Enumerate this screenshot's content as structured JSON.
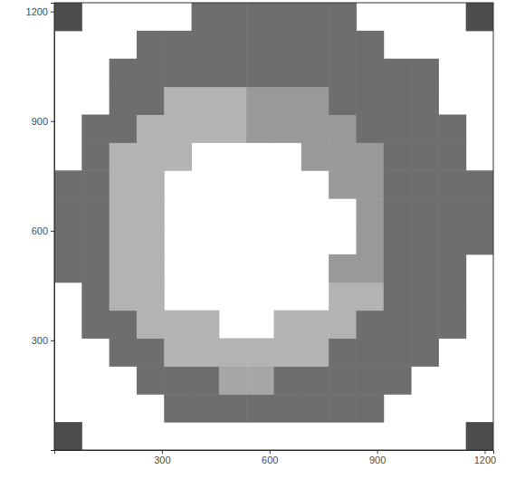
{
  "chart_data": {
    "type": "heatmap",
    "x_bins": [
      0,
      76.5,
      153,
      229.5,
      306,
      382.5,
      459,
      535.5,
      612,
      688.5,
      765,
      841.5,
      918,
      994.5,
      1071,
      1147.5,
      1224
    ],
    "y_bins": [
      0,
      76.5,
      153,
      229.5,
      306,
      382.5,
      459,
      535.5,
      612,
      688.5,
      765,
      841.5,
      918,
      994.5,
      1071,
      1147.5,
      1224
    ],
    "cells": [
      [
        0.3,
        null,
        null,
        null,
        null,
        null,
        null,
        null,
        null,
        null,
        null,
        null,
        null,
        null,
        null,
        0.3
      ],
      [
        null,
        null,
        null,
        null,
        0.43,
        0.43,
        0.43,
        0.43,
        0.43,
        0.43,
        0.43,
        0.43,
        null,
        null,
        null,
        null
      ],
      [
        null,
        null,
        null,
        0.43,
        0.43,
        0.43,
        0.65,
        0.65,
        0.43,
        0.43,
        0.43,
        0.43,
        0.43,
        null,
        null,
        null
      ],
      [
        null,
        null,
        0.43,
        0.43,
        0.7,
        0.7,
        0.7,
        0.7,
        0.7,
        0.7,
        0.43,
        0.43,
        0.43,
        0.43,
        null,
        null
      ],
      [
        null,
        0.43,
        0.43,
        0.7,
        0.7,
        0.7,
        null,
        null,
        0.7,
        0.7,
        0.7,
        0.43,
        0.43,
        0.43,
        0.43,
        null
      ],
      [
        null,
        0.43,
        0.7,
        0.7,
        null,
        null,
        null,
        null,
        null,
        null,
        0.7,
        0.7,
        0.43,
        0.43,
        0.43,
        null
      ],
      [
        0.43,
        0.43,
        0.7,
        0.7,
        null,
        null,
        null,
        null,
        null,
        null,
        0.6,
        0.6,
        0.43,
        0.43,
        0.43,
        null
      ],
      [
        0.43,
        0.43,
        0.7,
        0.7,
        null,
        null,
        null,
        null,
        null,
        null,
        null,
        0.6,
        0.43,
        0.43,
        0.43,
        0.43
      ],
      [
        0.43,
        0.43,
        0.7,
        0.7,
        null,
        null,
        null,
        null,
        null,
        null,
        null,
        0.6,
        0.43,
        0.43,
        0.43,
        0.43
      ],
      [
        0.43,
        0.43,
        0.7,
        0.7,
        null,
        null,
        null,
        null,
        null,
        null,
        0.6,
        0.6,
        0.43,
        0.43,
        0.43,
        0.43
      ],
      [
        null,
        0.43,
        0.7,
        0.7,
        0.7,
        null,
        null,
        null,
        null,
        0.6,
        0.6,
        0.6,
        0.43,
        0.43,
        0.43,
        null
      ],
      [
        null,
        0.43,
        0.43,
        0.7,
        0.7,
        0.7,
        0.7,
        0.6,
        0.6,
        0.6,
        0.6,
        0.43,
        0.43,
        0.43,
        0.43,
        null
      ],
      [
        null,
        null,
        0.43,
        0.43,
        0.7,
        0.7,
        0.7,
        0.6,
        0.6,
        0.6,
        0.43,
        0.43,
        0.43,
        0.43,
        null,
        null
      ],
      [
        null,
        null,
        0.43,
        0.43,
        0.43,
        0.43,
        0.43,
        0.43,
        0.43,
        0.43,
        0.43,
        0.43,
        0.43,
        0.43,
        null,
        null
      ],
      [
        null,
        null,
        null,
        0.43,
        0.43,
        0.43,
        0.43,
        0.43,
        0.43,
        0.43,
        0.43,
        0.43,
        null,
        null,
        null,
        null
      ],
      [
        0.3,
        null,
        null,
        null,
        null,
        0.43,
        0.43,
        0.43,
        0.43,
        0.43,
        0.43,
        null,
        null,
        null,
        null,
        0.3
      ]
    ],
    "zlim": [
      0,
      1
    ],
    "xlim": [
      0,
      1224
    ],
    "ylim": [
      0,
      1224
    ],
    "xticks": [
      300,
      600,
      900,
      1200
    ],
    "yticks": [
      300,
      600,
      900,
      1200
    ],
    "grid": false
  }
}
